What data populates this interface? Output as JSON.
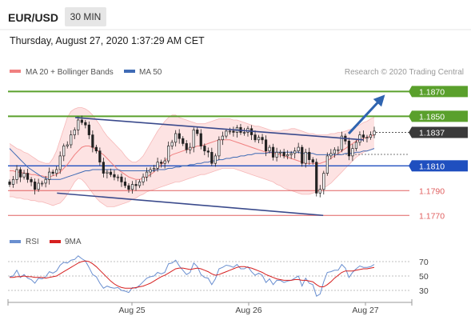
{
  "header": {
    "symbol": "EUR/USD",
    "timeframe": "30 MIN",
    "datetime": "Thursday, August 27, 2020 1:37:29 AM CET"
  },
  "legend": {
    "ma20_bb": "MA 20 + Bollinger Bands",
    "ma50": "MA 50",
    "credit": "Research © 2020 Trading Central",
    "rsi": "RSI",
    "ma9": "9MA"
  },
  "colors": {
    "bollinger_fill": "#fde0e0",
    "ma20": "#f08080",
    "ma50": "#3f6bb5",
    "channel": "#3a4a8c",
    "resistance": "#5aa02c",
    "pivot": "#1f4fbf",
    "support": "#e06060",
    "current": "#3a3a3a",
    "arrow": "#2f64b0",
    "rsi": "#6a8fd0",
    "rsi_ma": "#d62020"
  },
  "chart_data": [
    {
      "type": "candlestick",
      "title": "EUR/USD",
      "ylim": [
        1.1765,
        1.1878
      ],
      "x_tick_labels": [
        "Aug 25",
        "Aug 26",
        "Aug 27"
      ],
      "levels": [
        {
          "value": 1.187,
          "label": "1.1870",
          "kind": "resistance"
        },
        {
          "value": 1.185,
          "label": "1.1850",
          "kind": "resistance"
        },
        {
          "value": 1.1837,
          "label": "1.1837",
          "kind": "current"
        },
        {
          "value": 1.181,
          "label": "1.1810",
          "kind": "pivot"
        },
        {
          "value": 1.179,
          "label": "1.1790",
          "kind": "support"
        },
        {
          "value": 1.177,
          "label": "1.1770",
          "kind": "support"
        }
      ],
      "channel": {
        "upper": [
          [
            0.18,
            1.1849
          ],
          [
            0.97,
            1.1831
          ]
        ],
        "lower": [
          [
            0.13,
            1.1788
          ],
          [
            0.86,
            1.177
          ]
        ]
      },
      "arrow": {
        "from": [
          0.93,
          1.1836
        ],
        "to": [
          1.025,
          1.1866
        ]
      },
      "close": [
        1.1795,
        1.1799,
        1.1807,
        1.1801,
        1.1804,
        1.1799,
        1.1797,
        1.1791,
        1.1796,
        1.1796,
        1.1799,
        1.1805,
        1.1804,
        1.1807,
        1.1818,
        1.1826,
        1.1827,
        1.1835,
        1.1839,
        1.1847,
        1.1845,
        1.1843,
        1.1835,
        1.1825,
        1.1822,
        1.1813,
        1.1804,
        1.1805,
        1.1803,
        1.1801,
        1.1801,
        1.1797,
        1.1794,
        1.1791,
        1.1795,
        1.1794,
        1.1797,
        1.1801,
        1.1805,
        1.1807,
        1.1808,
        1.1813,
        1.1812,
        1.1814,
        1.1826,
        1.1829,
        1.1836,
        1.1832,
        1.1828,
        1.1823,
        1.1825,
        1.1839,
        1.1836,
        1.1826,
        1.1822,
        1.1821,
        1.1812,
        1.1818,
        1.1831,
        1.1834,
        1.1838,
        1.1838,
        1.1837,
        1.1841,
        1.1837,
        1.1837,
        1.184,
        1.1835,
        1.1831,
        1.1833,
        1.1831,
        1.1822,
        1.1825,
        1.1817,
        1.1821,
        1.1821,
        1.1818,
        1.1819,
        1.182,
        1.1822,
        1.1825,
        1.1812,
        1.1821,
        1.1815,
        1.1813,
        1.1788,
        1.1791,
        1.1804,
        1.1818,
        1.182,
        1.1823,
        1.1823,
        1.1834,
        1.183,
        1.1818,
        1.1824,
        1.1829,
        1.1835,
        1.1833,
        1.1833,
        1.1835,
        1.1838
      ],
      "bollinger_upper": [
        1.1828,
        1.1826,
        1.1824,
        1.1823,
        1.1821,
        1.182,
        1.1818,
        1.1816,
        1.1814,
        1.1813,
        1.1812,
        1.1812,
        1.1816,
        1.1822,
        1.1831,
        1.184,
        1.1849,
        1.1854,
        1.1856,
        1.1857,
        1.1857,
        1.1856,
        1.1854,
        1.1851,
        1.1847,
        1.1843,
        1.1838,
        1.1834,
        1.1831,
        1.1828,
        1.1825,
        1.1822,
        1.1818,
        1.1815,
        1.1813,
        1.1813,
        1.1815,
        1.1818,
        1.1823,
        1.1828,
        1.1833,
        1.1838,
        1.1842,
        1.1846,
        1.1849,
        1.1851,
        1.1851,
        1.1849,
        1.1848,
        1.1847,
        1.1846,
        1.1845,
        1.1844,
        1.1844,
        1.1844,
        1.1845,
        1.1846,
        1.1847,
        1.1848,
        1.1848,
        1.1848,
        1.1848,
        1.1847,
        1.1847,
        1.1846,
        1.1845,
        1.1844,
        1.1843,
        1.1842,
        1.1842,
        1.1841,
        1.184,
        1.1839,
        1.1838,
        1.1838,
        1.1838,
        1.1839,
        1.1839,
        1.184,
        1.184,
        1.1839,
        1.1838,
        1.1837,
        1.1836,
        1.1836,
        1.1835,
        1.1835,
        1.1835,
        1.1835,
        1.1836,
        1.1836,
        1.1837,
        1.1837,
        1.1838,
        1.1839,
        1.184,
        1.1842,
        1.1843,
        1.1845,
        1.1846,
        1.1848,
        1.1849
      ],
      "bollinger_lower": [
        1.1785,
        1.1785,
        1.1784,
        1.1784,
        1.1783,
        1.1783,
        1.1782,
        1.1782,
        1.1781,
        1.1781,
        1.178,
        1.1779,
        1.1778,
        1.1779,
        1.178,
        1.1783,
        1.1787,
        1.1792,
        1.1797,
        1.18,
        1.1799,
        1.1796,
        1.1792,
        1.1788,
        1.1784,
        1.1781,
        1.1779,
        1.1777,
        1.1777,
        1.1777,
        1.1778,
        1.1779,
        1.178,
        1.1781,
        1.1783,
        1.1784,
        1.1786,
        1.1787,
        1.1789,
        1.179,
        1.1791,
        1.1792,
        1.1793,
        1.1794,
        1.1795,
        1.1796,
        1.1797,
        1.1797,
        1.1798,
        1.1799,
        1.18,
        1.1801,
        1.1802,
        1.1803,
        1.1803,
        1.1804,
        1.1805,
        1.1806,
        1.1807,
        1.1808,
        1.1808,
        1.1808,
        1.1808,
        1.1807,
        1.1806,
        1.1805,
        1.1804,
        1.1803,
        1.1802,
        1.1801,
        1.18,
        1.1799,
        1.1798,
        1.1797,
        1.1795,
        1.1794,
        1.1792,
        1.1791,
        1.179,
        1.1789,
        1.1788,
        1.1787,
        1.1787,
        1.1787,
        1.1788,
        1.1789,
        1.179,
        1.1792,
        1.1794,
        1.1796,
        1.1799,
        1.1802,
        1.1805,
        1.1808,
        1.1811,
        1.1814,
        1.1817,
        1.1819,
        1.1821,
        1.1822,
        1.1823,
        1.1824
      ],
      "ma20": [
        1.1806,
        1.1806,
        1.1805,
        1.1805,
        1.1804,
        1.1804,
        1.1803,
        1.1803,
        1.1802,
        1.1802,
        1.1801,
        1.1801,
        1.1802,
        1.1803,
        1.1805,
        1.1808,
        1.1811,
        1.1815,
        1.1819,
        1.1822,
        1.1825,
        1.1826,
        1.1826,
        1.1825,
        1.1823,
        1.1821,
        1.1819,
        1.1816,
        1.1813,
        1.181,
        1.1807,
        1.1805,
        1.1803,
        1.1801,
        1.18,
        1.1799,
        1.1799,
        1.18,
        1.1801,
        1.1803,
        1.1805,
        1.1808,
        1.1811,
        1.1814,
        1.1817,
        1.1819,
        1.182,
        1.1821,
        1.1822,
        1.1823,
        1.1824,
        1.1825,
        1.1826,
        1.1826,
        1.1827,
        1.1828,
        1.1829,
        1.183,
        1.1831,
        1.1831,
        1.1831,
        1.1831,
        1.183,
        1.1829,
        1.1828,
        1.1827,
        1.1826,
        1.1825,
        1.1824,
        1.1823,
        1.1822,
        1.1821,
        1.1821,
        1.182,
        1.182,
        1.1819,
        1.1818,
        1.1817,
        1.1816,
        1.1815,
        1.1814,
        1.1813,
        1.1812,
        1.1812,
        1.1812,
        1.1812,
        1.1812,
        1.1813,
        1.1814,
        1.1816,
        1.1818,
        1.182,
        1.1822,
        1.1824,
        1.1826,
        1.1828,
        1.183,
        1.1831,
        1.1832,
        1.1833,
        1.1834,
        1.1835
      ],
      "ma50": [
        1.1824,
        1.1821,
        1.1818,
        1.1815,
        1.1812,
        1.1809,
        1.1807,
        1.1805,
        1.1803,
        1.1801,
        1.18,
        1.1799,
        1.1799,
        1.1799,
        1.1799,
        1.18,
        1.1801,
        1.1802,
        1.1803,
        1.1804,
        1.1805,
        1.1806,
        1.1806,
        1.1807,
        1.1807,
        1.1807,
        1.1807,
        1.1807,
        1.1807,
        1.1807,
        1.1807,
        1.1806,
        1.1806,
        1.1806,
        1.1806,
        1.1806,
        1.1806,
        1.1806,
        1.1806,
        1.1806,
        1.1806,
        1.1807,
        1.1807,
        1.1807,
        1.1808,
        1.1808,
        1.1809,
        1.1809,
        1.181,
        1.181,
        1.1811,
        1.1811,
        1.1812,
        1.1812,
        1.1813,
        1.1813,
        1.1814,
        1.1814,
        1.1815,
        1.1815,
        1.1816,
        1.1816,
        1.1817,
        1.1817,
        1.1818,
        1.1818,
        1.1819,
        1.1819,
        1.182,
        1.182,
        1.182,
        1.182,
        1.1821,
        1.1821,
        1.1821,
        1.1821,
        1.1821,
        1.1821,
        1.1821,
        1.1821,
        1.1821,
        1.182,
        1.182,
        1.182,
        1.182,
        1.1819,
        1.1819,
        1.1819,
        1.1819,
        1.1819,
        1.1819,
        1.1819,
        1.1819,
        1.182,
        1.182,
        1.182,
        1.1821,
        1.1821,
        1.1822,
        1.1822,
        1.1823,
        1.1824
      ]
    },
    {
      "type": "line",
      "title": "RSI",
      "ylim": [
        20,
        80
      ],
      "y_tick_labels": [
        "70",
        "50",
        "30"
      ],
      "series": [
        {
          "name": "RSI",
          "values": [
            49,
            50,
            58,
            48,
            52,
            47,
            45,
            40,
            47,
            46,
            49,
            56,
            54,
            57,
            65,
            69,
            68,
            72,
            73,
            78,
            74,
            71,
            62,
            52,
            49,
            40,
            33,
            36,
            34,
            33,
            34,
            30,
            29,
            27,
            34,
            33,
            37,
            42,
            47,
            49,
            50,
            55,
            53,
            55,
            67,
            68,
            72,
            64,
            58,
            52,
            55,
            68,
            63,
            52,
            48,
            47,
            38,
            46,
            60,
            62,
            65,
            64,
            62,
            66,
            60,
            60,
            63,
            56,
            51,
            54,
            51,
            41,
            46,
            38,
            44,
            44,
            41,
            43,
            44,
            47,
            50,
            36,
            47,
            40,
            38,
            22,
            25,
            42,
            55,
            56,
            58,
            58,
            66,
            61,
            48,
            55,
            60,
            64,
            62,
            62,
            63,
            66
          ]
        },
        {
          "name": "9MA",
          "values": [
            48,
            48,
            49,
            49,
            50,
            49,
            49,
            48,
            48,
            48,
            47,
            48,
            49,
            50,
            53,
            56,
            59,
            62,
            65,
            68,
            70,
            71,
            70,
            67,
            63,
            58,
            53,
            48,
            43,
            39,
            36,
            34,
            33,
            33,
            33,
            34,
            35,
            36,
            38,
            40,
            43,
            46,
            49,
            51,
            54,
            57,
            60,
            61,
            61,
            60,
            59,
            60,
            61,
            60,
            58,
            56,
            53,
            51,
            52,
            54,
            56,
            58,
            60,
            62,
            63,
            63,
            62,
            61,
            59,
            57,
            55,
            52,
            50,
            48,
            46,
            45,
            44,
            44,
            44,
            45,
            45,
            44,
            44,
            43,
            42,
            38,
            35,
            35,
            38,
            42,
            47,
            51,
            55,
            57,
            57,
            57,
            58,
            59,
            60,
            60,
            61,
            62
          ]
        }
      ],
      "levels": [
        70,
        50,
        30
      ]
    }
  ]
}
